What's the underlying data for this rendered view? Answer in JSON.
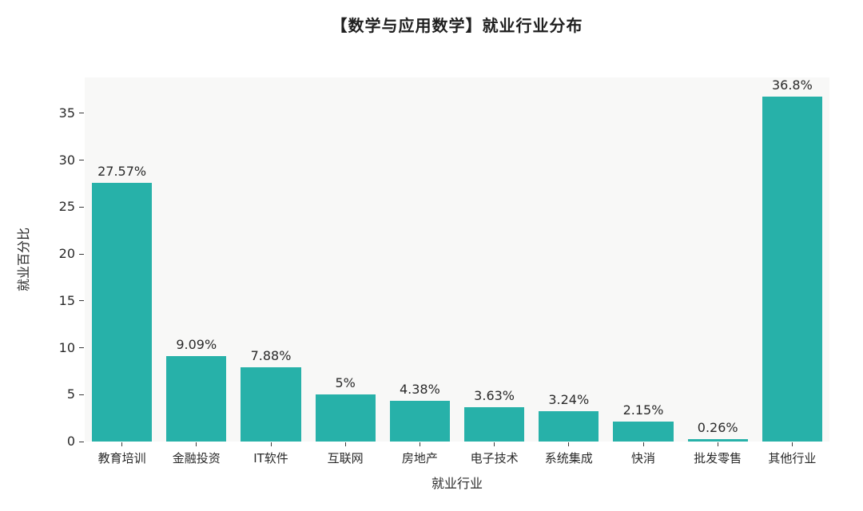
{
  "chart_data": {
    "type": "bar",
    "title": "【数学与应用数学】就业行业分布",
    "xlabel": "就业行业",
    "ylabel": "就业百分比",
    "categories": [
      "教育培训",
      "金融投资",
      "IT软件",
      "互联网",
      "房地产",
      "电子技术",
      "系统集成",
      "快消",
      "批发零售",
      "其他行业"
    ],
    "values": [
      27.57,
      9.09,
      7.88,
      5,
      4.38,
      3.63,
      3.24,
      2.15,
      0.26,
      36.8
    ],
    "value_labels": [
      "27.57%",
      "9.09%",
      "7.88%",
      "5%",
      "4.38%",
      "3.63%",
      "3.24%",
      "2.15%",
      "0.26%",
      "36.8%"
    ],
    "yticks": [
      0,
      5,
      10,
      15,
      20,
      25,
      30,
      35
    ],
    "ylim": [
      0,
      38.83
    ],
    "bar_color": "#27b1a9",
    "plot_background": "#f8f8f7",
    "text_color": "#2a2a2a",
    "grid": false,
    "legend_position": "none"
  }
}
